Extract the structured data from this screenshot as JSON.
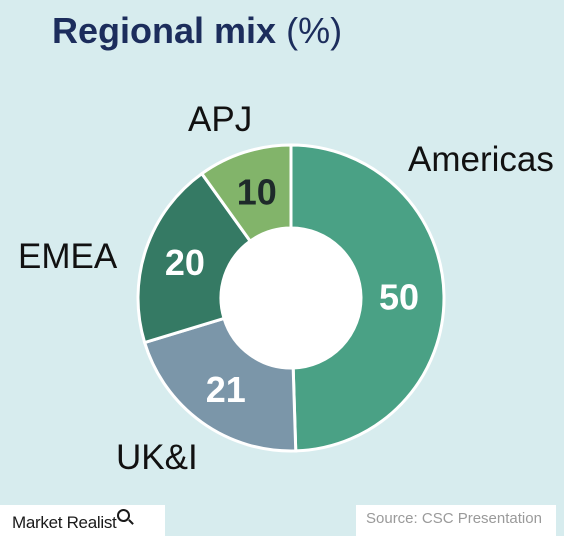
{
  "title": {
    "main": "Regional mix",
    "unit": "(%)"
  },
  "chart_data": {
    "type": "pie",
    "donut": true,
    "title": "Regional mix (%)",
    "slices": [
      {
        "label": "Americas",
        "value": 50,
        "color": "#4aa185"
      },
      {
        "label": "UK&I",
        "value": 21,
        "color": "#7b96a9"
      },
      {
        "label": "EMEA",
        "value": 20,
        "color": "#357a64"
      },
      {
        "label": "APJ",
        "value": 10,
        "color": "#82b46a"
      }
    ]
  },
  "footer": {
    "brand": "Market Realist",
    "source": "Source:  CSC Presentation"
  }
}
